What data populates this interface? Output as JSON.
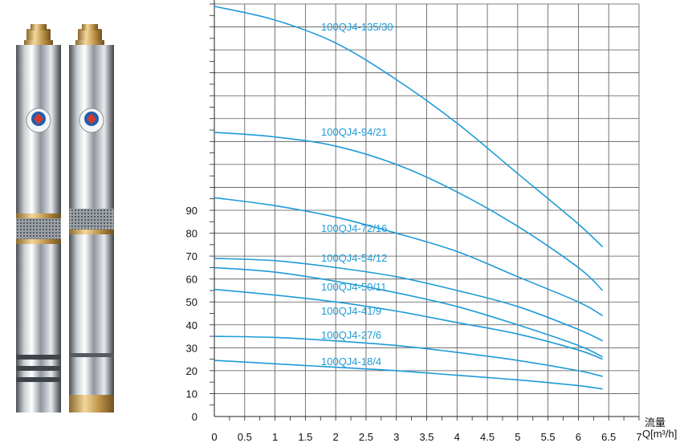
{
  "chart_data": {
    "type": "line",
    "xlabel": "流量",
    "xunit": "Q[m³/h]",
    "xlim": [
      0,
      7
    ],
    "ylim": [
      0,
      180
    ],
    "x_ticks": [
      "0",
      "0.5",
      "1",
      "1.5",
      "2",
      "2.5",
      "3",
      "3.5",
      "4",
      "4.5",
      "5",
      "5.5",
      "6",
      "6.5",
      "7"
    ],
    "y_ticks": [
      "0",
      "10",
      "20",
      "30",
      "40",
      "50",
      "60",
      "70",
      "80",
      "90"
    ],
    "grid": true,
    "line_color": "#1e9bd7",
    "series": [
      {
        "name": "100QJ4-135/30",
        "x": [
          0,
          1,
          2,
          3,
          4,
          5,
          6,
          6.4
        ],
        "y": [
          179,
          173,
          163,
          147,
          128,
          106,
          84,
          74
        ]
      },
      {
        "name": "100QJ4-94/21",
        "x": [
          0,
          1,
          2,
          3,
          4,
          5,
          6,
          6.4
        ],
        "y": [
          124,
          122,
          118,
          110,
          98,
          83,
          65,
          55
        ]
      },
      {
        "name": "100QJ4-72/16",
        "x": [
          0,
          1,
          2,
          3,
          4,
          5,
          6,
          6.4
        ],
        "y": [
          95.5,
          92,
          87,
          80,
          72,
          61,
          50,
          44
        ]
      },
      {
        "name": "100QJ4-54/12",
        "x": [
          0,
          1,
          2,
          3,
          4,
          5,
          6,
          6.4
        ],
        "y": [
          69,
          68,
          65,
          61,
          55,
          48,
          38,
          33
        ]
      },
      {
        "name": "100QJ4-50/11",
        "x": [
          0,
          1,
          2,
          3,
          4,
          5,
          6,
          6.4
        ],
        "y": [
          65,
          63,
          59,
          54,
          48,
          40,
          31,
          26
        ]
      },
      {
        "name": "100QJ4-41/9",
        "x": [
          0,
          1,
          2,
          3,
          4,
          5,
          6,
          6.4
        ],
        "y": [
          55.5,
          53,
          50,
          46,
          41,
          36,
          29,
          25
        ]
      },
      {
        "name": "100QJ4-27/6",
        "x": [
          0,
          1,
          2,
          3,
          4,
          5,
          6,
          6.4
        ],
        "y": [
          35,
          34.5,
          33,
          31,
          28,
          24.5,
          20,
          17.5
        ]
      },
      {
        "name": "100QJ4-18/4",
        "x": [
          0,
          1,
          2,
          3,
          4,
          5,
          6,
          6.4
        ],
        "y": [
          24.5,
          23,
          21.5,
          20,
          18,
          16,
          13.5,
          12
        ]
      }
    ]
  }
}
